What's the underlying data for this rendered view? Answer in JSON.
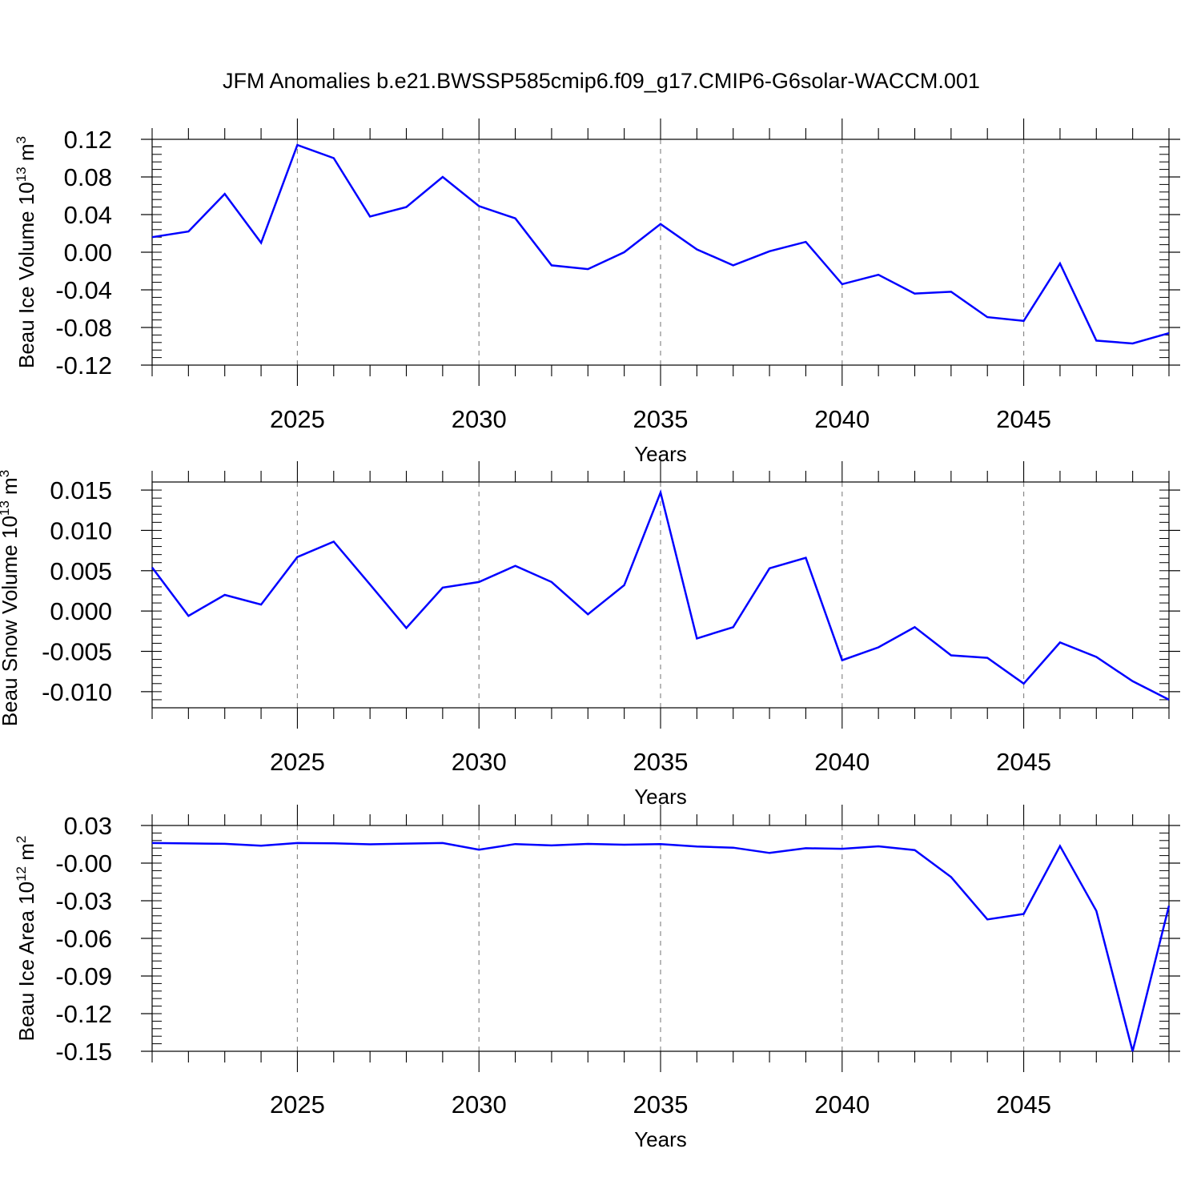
{
  "figure": {
    "title": "JFM Anomalies b.e21.BWSSP585cmip6.f09_g17.CMIP6-G6solar-WACCM.001"
  },
  "chart_data": [
    {
      "type": "line",
      "ylabel": "Beau Ice Volume 10",
      "ylabel_exp": "13",
      "ylabel_unit": "m",
      "ylabel_unit_exp": "3",
      "xlabel": "Years",
      "xlim": [
        2021,
        2049
      ],
      "ylim": [
        -0.12,
        0.12
      ],
      "xticks": [
        2025,
        2030,
        2035,
        2040,
        2045
      ],
      "xtick_labels": [
        "2025",
        "2030",
        "2035",
        "2040",
        "2045"
      ],
      "yticks": [
        -0.12,
        -0.08,
        -0.04,
        0.0,
        0.04,
        0.08,
        0.12
      ],
      "ytick_labels": [
        "-0.12",
        "-0.08",
        "-0.04",
        "0.00",
        "0.04",
        "0.08",
        "0.12"
      ],
      "grid": "vertical dashed at major x ticks",
      "line_color": "#0000ff",
      "x": [
        2021,
        2022,
        2023,
        2024,
        2025,
        2026,
        2027,
        2028,
        2029,
        2030,
        2031,
        2032,
        2033,
        2034,
        2035,
        2036,
        2037,
        2038,
        2039,
        2040,
        2041,
        2042,
        2043,
        2044,
        2045,
        2046,
        2047,
        2048,
        2049
      ],
      "values": [
        0.016,
        0.022,
        0.062,
        0.01,
        0.114,
        0.1,
        0.038,
        0.048,
        0.08,
        0.049,
        0.036,
        -0.014,
        -0.018,
        0.0,
        0.03,
        0.003,
        -0.014,
        0.001,
        0.011,
        -0.034,
        -0.024,
        -0.044,
        -0.042,
        -0.069,
        -0.073,
        -0.012,
        -0.094,
        -0.097,
        -0.086
      ]
    },
    {
      "type": "line",
      "ylabel": "Beau Snow Volume 10",
      "ylabel_exp": "13",
      "ylabel_unit": "m",
      "ylabel_unit_exp": "3",
      "xlabel": "Years",
      "xlim": [
        2021,
        2049
      ],
      "ylim": [
        -0.012,
        0.016
      ],
      "xticks": [
        2025,
        2030,
        2035,
        2040,
        2045
      ],
      "xtick_labels": [
        "2025",
        "2030",
        "2035",
        "2040",
        "2045"
      ],
      "yticks": [
        -0.01,
        -0.005,
        0.0,
        0.005,
        0.01,
        0.015
      ],
      "ytick_labels": [
        "-0.010",
        "-0.005",
        "0.000",
        "0.005",
        "0.010",
        "0.015"
      ],
      "grid": "vertical dashed at major x ticks",
      "line_color": "#0000ff",
      "x": [
        2021,
        2022,
        2023,
        2024,
        2025,
        2026,
        2027,
        2028,
        2029,
        2030,
        2031,
        2032,
        2033,
        2034,
        2035,
        2036,
        2037,
        2038,
        2039,
        2040,
        2041,
        2042,
        2043,
        2044,
        2045,
        2046,
        2047,
        2048,
        2049
      ],
      "values": [
        0.0054,
        -0.0006,
        0.002,
        0.0008,
        0.0067,
        0.0086,
        0.0033,
        -0.0021,
        0.0029,
        0.0036,
        0.0056,
        0.0036,
        -0.0004,
        0.0032,
        0.0147,
        -0.0034,
        -0.002,
        0.0053,
        0.0066,
        -0.0061,
        -0.0045,
        -0.002,
        -0.0055,
        -0.0058,
        -0.009,
        -0.0039,
        -0.0057,
        -0.0087,
        -0.011
      ]
    },
    {
      "type": "line",
      "ylabel": "Beau Ice Area 10",
      "ylabel_exp": "12",
      "ylabel_unit": "m",
      "ylabel_unit_exp": "2",
      "xlabel": "Years",
      "xlim": [
        2021,
        2049
      ],
      "ylim": [
        -0.15,
        0.03
      ],
      "xticks": [
        2025,
        2030,
        2035,
        2040,
        2045
      ],
      "xtick_labels": [
        "2025",
        "2030",
        "2035",
        "2040",
        "2045"
      ],
      "yticks": [
        -0.15,
        -0.12,
        -0.09,
        -0.06,
        -0.03,
        0.0,
        0.03
      ],
      "ytick_labels": [
        "-0.15",
        "-0.12",
        "-0.09",
        "-0.06",
        "-0.03",
        "-0.00",
        "0.03"
      ],
      "grid": "vertical dashed at major x ticks",
      "line_color": "#0000ff",
      "x": [
        2021,
        2022,
        2023,
        2024,
        2025,
        2026,
        2027,
        2028,
        2029,
        2030,
        2031,
        2032,
        2033,
        2034,
        2035,
        2036,
        2037,
        2038,
        2039,
        2040,
        2041,
        2042,
        2043,
        2044,
        2045,
        2046,
        2047,
        2048,
        2049
      ],
      "values": [
        0.016,
        0.0157,
        0.0154,
        0.0139,
        0.016,
        0.0158,
        0.015,
        0.0156,
        0.016,
        0.0107,
        0.0152,
        0.0141,
        0.0153,
        0.0147,
        0.0151,
        0.0133,
        0.0123,
        0.0081,
        0.0119,
        0.0114,
        0.0134,
        0.0104,
        -0.0111,
        -0.0449,
        -0.0405,
        0.0136,
        -0.0381,
        -0.15,
        -0.034
      ]
    }
  ]
}
